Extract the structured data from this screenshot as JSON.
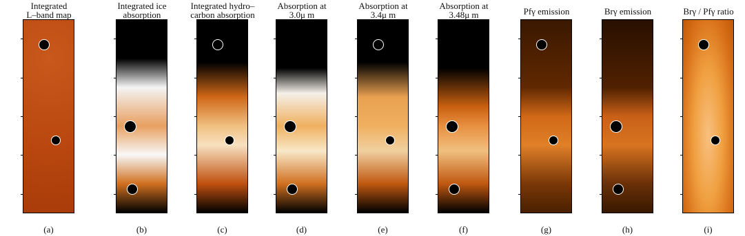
{
  "panels": [
    {
      "title": [
        "Integrated",
        "L–band map"
      ],
      "label": "(a)"
    },
    {
      "title": [
        "Integrated ice",
        "absorption"
      ],
      "label": "(b)"
    },
    {
      "title": [
        "Integrated hydro–",
        "carbon absorption"
      ],
      "label": "(c)"
    },
    {
      "title": [
        "Absorption at",
        "3.0μ m"
      ],
      "label": "(d)"
    },
    {
      "title": [
        "Absorption at",
        "3.4μ m"
      ],
      "label": "(e)"
    },
    {
      "title": [
        "Absorption at",
        "3.48μ m"
      ],
      "label": "(f)"
    },
    {
      "title": [
        "Pfγ emission"
      ],
      "label": "(g)"
    },
    {
      "title": [
        "Brγ emission"
      ],
      "label": "(h)"
    },
    {
      "title": [
        "Brγ / Pfγ ratio"
      ],
      "label": "(i)"
    }
  ]
}
